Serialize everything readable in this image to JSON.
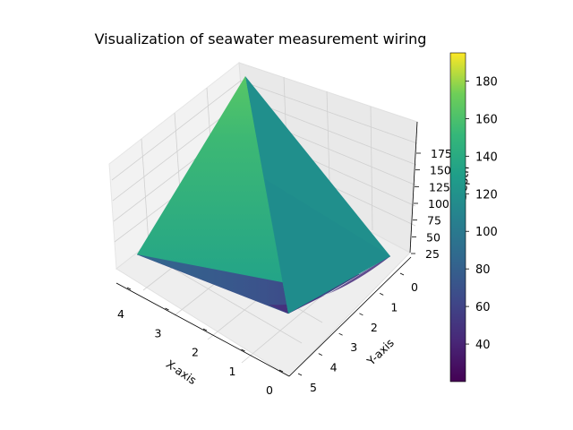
{
  "chart_data": {
    "type": "surface3d",
    "title": "Visualization of seawater measurement wiring",
    "xlabel": "X-axis",
    "ylabel": "Y-axis",
    "zlabel": "Depth",
    "x_ticks": [
      "0",
      "1",
      "2",
      "3",
      "4"
    ],
    "y_ticks": [
      "0",
      "1",
      "2",
      "3",
      "4",
      "5"
    ],
    "z_ticks": [
      "25",
      "50",
      "75",
      "100",
      "125",
      "150",
      "175"
    ],
    "xlim": [
      0,
      4
    ],
    "ylim": [
      0,
      5
    ],
    "zlim": [
      20,
      195
    ],
    "colormap": "viridis",
    "colorbar": {
      "ticks": [
        "40",
        "60",
        "80",
        "100",
        "120",
        "140",
        "160",
        "180"
      ],
      "range": [
        20,
        195
      ]
    },
    "surface": {
      "peak": {
        "x": 4,
        "y": 0,
        "z": 195
      },
      "corners": [
        {
          "x": 4,
          "y": 5,
          "z": 70
        },
        {
          "x": 0,
          "y": 0,
          "z": 105
        },
        {
          "x": 0,
          "y": 5,
          "z": 20
        },
        {
          "x": 4,
          "y": 0,
          "z": 195
        }
      ]
    },
    "grid": true,
    "colors": {
      "left_face": "#2a9d8f",
      "right_face": "#21918c",
      "underside": "#3b528b",
      "underside_dark": "#46337e"
    }
  }
}
